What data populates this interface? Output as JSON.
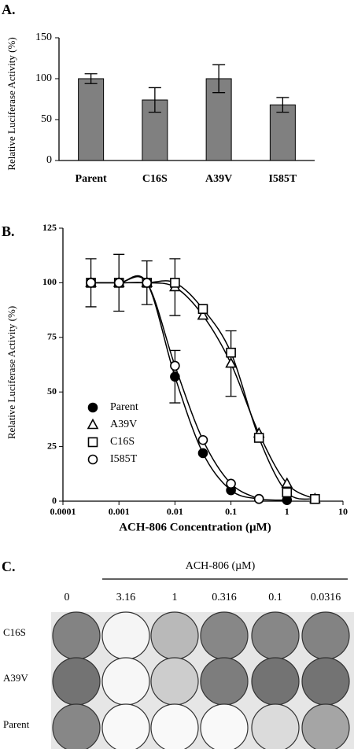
{
  "panel_labels": [
    "A.",
    "B.",
    "C."
  ],
  "chart_data": [
    {
      "type": "bar",
      "ylabel": "Relative Luciferase Activity (%)",
      "categories": [
        "Parent",
        "C16S",
        "A39V",
        "I585T"
      ],
      "values": [
        100,
        74,
        100,
        68
      ],
      "errors": [
        6,
        15,
        17,
        9
      ],
      "color": "#808080",
      "ylim": [
        0,
        150
      ],
      "yticks": [
        0,
        50,
        100,
        150
      ]
    },
    {
      "type": "scatter",
      "xlabel": "ACH-806 Concentration (µM)",
      "ylabel": "Relative Luciferase Activity (%)",
      "log_x": true,
      "x": [
        0.000316,
        0.001,
        0.00316,
        0.01,
        0.0316,
        0.1,
        0.316,
        1,
        3.16
      ],
      "series": [
        {
          "name": "Parent",
          "marker": "circle-filled",
          "color": "#000000",
          "values": [
            100,
            100,
            100,
            57,
            22,
            5,
            1,
            0.5,
            null
          ],
          "errors": [
            11,
            13,
            10,
            12,
            null,
            null,
            null,
            null,
            null
          ]
        },
        {
          "name": "A39V",
          "marker": "triangle",
          "color": "#000000",
          "values": [
            100,
            100,
            100,
            98,
            85,
            63,
            31,
            8,
            1
          ],
          "errors": [
            null,
            null,
            null,
            13,
            null,
            15,
            null,
            null,
            null
          ]
        },
        {
          "name": "C16S",
          "marker": "square",
          "color": "#000000",
          "values": [
            100,
            100,
            100,
            100,
            88,
            68,
            29,
            4,
            1
          ],
          "errors": [
            null,
            null,
            null,
            null,
            null,
            null,
            null,
            null,
            null
          ]
        },
        {
          "name": "I585T",
          "marker": "circle",
          "color": "#000000",
          "values": [
            100,
            100,
            100,
            62,
            28,
            8,
            1,
            null,
            null
          ],
          "errors": [
            null,
            null,
            null,
            null,
            null,
            null,
            null,
            null,
            null
          ]
        }
      ],
      "xlim": [
        0.0001,
        10
      ],
      "xticks": [
        0.0001,
        0.001,
        0.01,
        0.1,
        1,
        10
      ],
      "ylim": [
        0,
        125
      ],
      "yticks": [
        0,
        25,
        50,
        75,
        100,
        125
      ]
    }
  ],
  "plates": {
    "title": "ACH-806 (µM)",
    "columns": [
      "0",
      "3.16",
      "1",
      "0.316",
      "0.1",
      "0.0316"
    ],
    "rows": [
      "C16S",
      "A39V",
      "Parent"
    ]
  }
}
